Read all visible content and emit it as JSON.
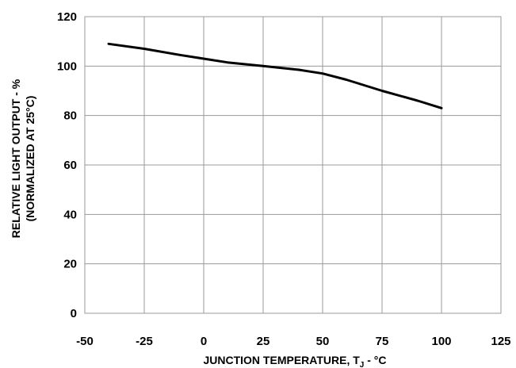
{
  "chart_data": {
    "type": "line",
    "title": "",
    "xlabel_main": "JUNCTION TEMPERATURE, T",
    "xlabel_sub": "J",
    "xlabel_tail": " - °C",
    "ylabel_line1": "RELATIVE LIGHT OUTPUT - %",
    "ylabel_line2": "(NORMALIZED AT 25°C)",
    "xlim": [
      -50,
      125
    ],
    "ylim": [
      0,
      120
    ],
    "x_ticks": [
      -50,
      -25,
      0,
      25,
      50,
      75,
      100,
      125
    ],
    "y_ticks": [
      0,
      20,
      40,
      60,
      80,
      100,
      120
    ],
    "grid": true,
    "series": [
      {
        "x": [
          -40,
          -25,
          -10,
          0,
          10,
          25,
          40,
          50,
          60,
          75,
          90,
          100
        ],
        "y": [
          109,
          107,
          104.5,
          103,
          101.5,
          100,
          98.5,
          97,
          94.5,
          90,
          86,
          83
        ]
      }
    ]
  }
}
